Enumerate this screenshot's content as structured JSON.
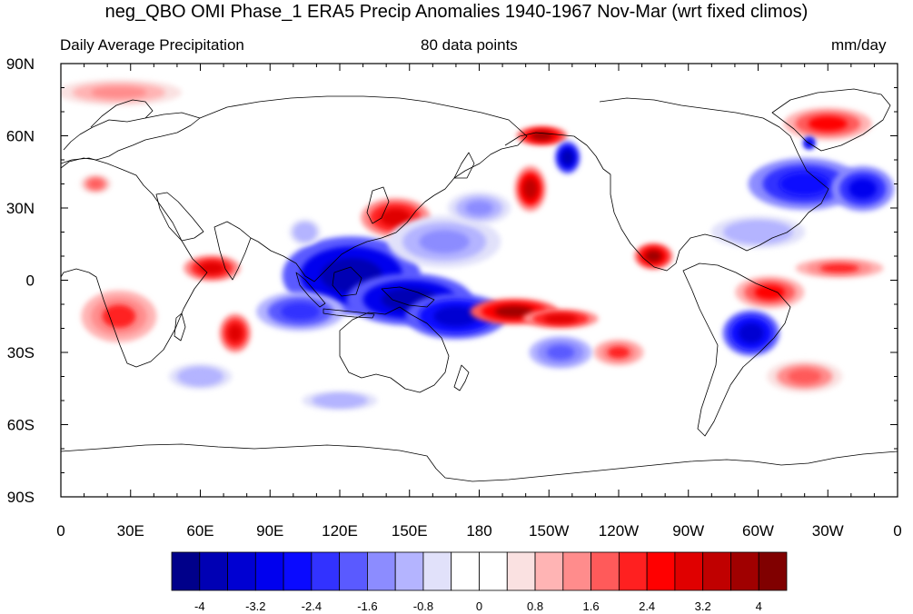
{
  "title": "neg_QBO OMI Phase_1 ERA5 Precip Anomalies 1940-1967 Nov-Mar (wrt fixed climos)",
  "subtitle_left": "Daily Average Precipitation",
  "subtitle_center": "80 data points",
  "subtitle_right": "mm/day",
  "lon_ticks": [
    "0",
    "30E",
    "60E",
    "90E",
    "120E",
    "150E",
    "180",
    "150W",
    "120W",
    "90W",
    "60W",
    "30W",
    "0"
  ],
  "lat_ticks": [
    "90N",
    "60N",
    "30N",
    "0",
    "30S",
    "60S",
    "90S"
  ],
  "colorbar": {
    "colors": [
      "#00008a",
      "#0000b4",
      "#0000d2",
      "#0000ee",
      "#0a0aff",
      "#3232ff",
      "#5a5aff",
      "#8c8cff",
      "#b4b4ff",
      "#e1e1fa",
      "#ffffff",
      "#ffffff",
      "#fae1e1",
      "#ffb4b4",
      "#ff8c8c",
      "#ff5a5a",
      "#ff2020",
      "#ff0000",
      "#e00000",
      "#c00000",
      "#a00000",
      "#800000"
    ],
    "labels": [
      "-4",
      "-3.2",
      "-2.4",
      "-1.6",
      "-0.8",
      "0",
      "0.8",
      "1.6",
      "2.4",
      "3.2",
      "4"
    ]
  },
  "anomalies": [
    {
      "lon": 125,
      "lat": 2,
      "value": -4.0,
      "rlon": 22,
      "rlat": 12
    },
    {
      "lon": 150,
      "lat": -8,
      "value": -4.0,
      "rlon": 20,
      "rlat": 8
    },
    {
      "lon": 170,
      "lat": -15,
      "value": -3.6,
      "rlon": 16,
      "rlat": 7
    },
    {
      "lon": 103,
      "lat": -13,
      "value": -2.4,
      "rlon": 14,
      "rlat": 6
    },
    {
      "lon": 65,
      "lat": 5,
      "value": 2.8,
      "rlon": 9,
      "rlat": 4
    },
    {
      "lon": 75,
      "lat": -22,
      "value": 2.8,
      "rlon": 5,
      "rlat": 6
    },
    {
      "lon": 25,
      "lat": -15,
      "value": 2.0,
      "rlon": 12,
      "rlat": 8
    },
    {
      "lon": 195,
      "lat": -13,
      "value": 3.6,
      "rlon": 14,
      "rlat": 4
    },
    {
      "lon": 215,
      "lat": -16,
      "value": 2.8,
      "rlon": 12,
      "rlat": 3
    },
    {
      "lon": 207,
      "lat": 60,
      "value": 3.6,
      "rlon": 8,
      "rlat": 3
    },
    {
      "lon": 202,
      "lat": 38,
      "value": 3.2,
      "rlon": 5,
      "rlat": 7
    },
    {
      "lon": 218,
      "lat": 51,
      "value": -4.0,
      "rlon": 4,
      "rlat": 5
    },
    {
      "lon": 144,
      "lat": 26,
      "value": 2.8,
      "rlon": 11,
      "rlat": 6
    },
    {
      "lon": 165,
      "lat": 16,
      "value": -1.6,
      "rlon": 18,
      "rlat": 8
    },
    {
      "lon": 255,
      "lat": 10,
      "value": 3.6,
      "rlon": 6,
      "rlat": 4
    },
    {
      "lon": 305,
      "lat": -5,
      "value": 2.4,
      "rlon": 11,
      "rlat": 5
    },
    {
      "lon": 335,
      "lat": 5,
      "value": 2.0,
      "rlon": 14,
      "rlat": 3
    },
    {
      "lon": 297,
      "lat": -22,
      "value": -3.6,
      "rlon": 9,
      "rlat": 7
    },
    {
      "lon": 320,
      "lat": 40,
      "value": -2.8,
      "rlon": 18,
      "rlat": 8
    },
    {
      "lon": 345,
      "lat": 38,
      "value": -3.2,
      "rlon": 10,
      "rlat": 7
    },
    {
      "lon": 330,
      "lat": 65,
      "value": 2.4,
      "rlon": 14,
      "rlat": 5
    },
    {
      "lon": 322,
      "lat": 57,
      "value": -3.6,
      "rlon": 2,
      "rlat": 2
    },
    {
      "lon": 25,
      "lat": 78,
      "value": 1.2,
      "rlon": 20,
      "rlat": 4
    },
    {
      "lon": 240,
      "lat": -30,
      "value": 2.0,
      "rlon": 8,
      "rlat": 4
    },
    {
      "lon": 215,
      "lat": -30,
      "value": -2.0,
      "rlon": 10,
      "rlat": 5
    },
    {
      "lon": 180,
      "lat": 30,
      "value": -1.6,
      "rlon": 10,
      "rlat": 5
    },
    {
      "lon": 120,
      "lat": -50,
      "value": -1.2,
      "rlon": 12,
      "rlat": 3
    },
    {
      "lon": 320,
      "lat": -40,
      "value": 1.6,
      "rlon": 12,
      "rlat": 5
    },
    {
      "lon": 15,
      "lat": 40,
      "value": 1.6,
      "rlon": 5,
      "rlat": 3
    },
    {
      "lon": 105,
      "lat": 20,
      "value": -1.2,
      "rlon": 5,
      "rlat": 4
    },
    {
      "lon": 60,
      "lat": -40,
      "value": -1.2,
      "rlon": 10,
      "rlat": 4
    },
    {
      "lon": 300,
      "lat": 20,
      "value": -1.2,
      "rlon": 15,
      "rlat": 5
    }
  ]
}
